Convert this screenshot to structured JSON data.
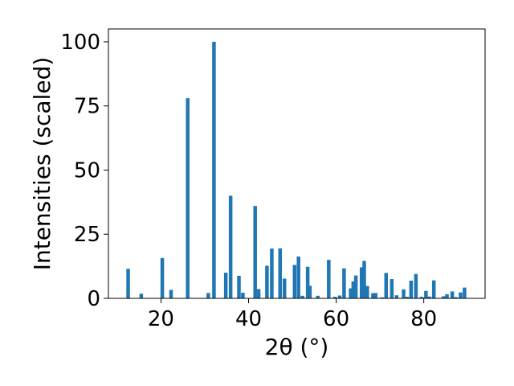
{
  "chart_data": {
    "type": "bar",
    "xlabel": "2θ (°)",
    "ylabel": "Intensities (scaled)",
    "xlim": [
      8,
      94
    ],
    "ylim": [
      0,
      105
    ],
    "xticks": [
      20,
      40,
      60,
      80
    ],
    "yticks": [
      0,
      25,
      50,
      75,
      100
    ],
    "bar_color": "#1f77b4",
    "x": [
      12.5,
      15.5,
      20.3,
      22.3,
      26.1,
      30.8,
      32.1,
      34.8,
      35.9,
      37.8,
      38.7,
      41.5,
      42.3,
      44.2,
      45.3,
      47.2,
      48.2,
      50.5,
      51.4,
      52.3,
      53.5,
      54.0,
      55.8,
      58.3,
      59.7,
      60.8,
      61.8,
      63.3,
      63.9,
      64.5,
      65.8,
      66.4,
      67.1,
      68.4,
      69.0,
      70.5,
      71.4,
      72.7,
      73.8,
      75.4,
      76.2,
      77.1,
      78.2,
      79.5,
      80.5,
      81.3,
      82.3,
      84.5,
      85.3,
      86.5,
      87.3,
      88.4,
      89.3
    ],
    "values": [
      11.5,
      1.8,
      15.7,
      3.3,
      78.0,
      2.1,
      100.0,
      10.0,
      40.0,
      8.8,
      2.2,
      36.0,
      3.6,
      12.7,
      19.4,
      19.5,
      7.7,
      13.0,
      16.3,
      1.0,
      12.3,
      4.9,
      1.0,
      15.0,
      0.6,
      1.1,
      11.7,
      3.9,
      6.6,
      8.9,
      12.1,
      14.6,
      4.8,
      2.0,
      2.1,
      0.4,
      9.9,
      7.5,
      1.2,
      3.5,
      0.6,
      6.9,
      9.5,
      0.6,
      2.9,
      0.7,
      7.0,
      0.8,
      1.6,
      2.7,
      0.5,
      2.3,
      4.2
    ]
  }
}
